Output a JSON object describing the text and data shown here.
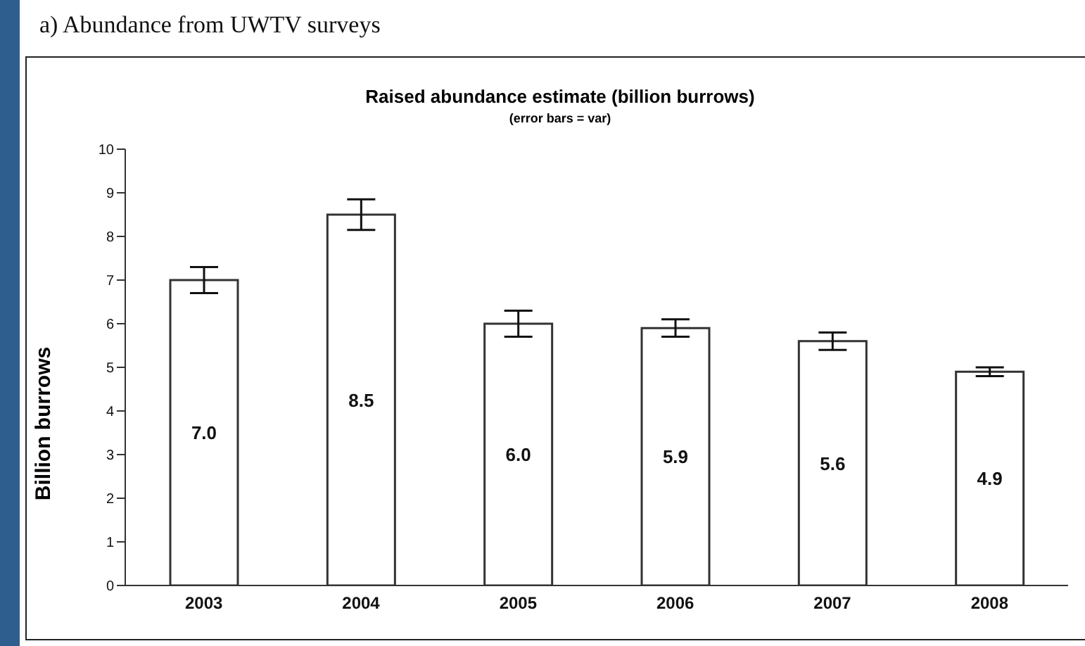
{
  "chart_data": {
    "type": "bar",
    "title": "Raised abundance estimate (billion burrows)",
    "subtitle": "(error bars = var)",
    "ylabel": "Billion burrows",
    "annotations": [
      "a) Abundance from UWTV surveys"
    ],
    "categories": [
      "2003",
      "2004",
      "2005",
      "2006",
      "2007",
      "2008"
    ],
    "values": [
      7.0,
      8.5,
      6.0,
      5.9,
      5.6,
      4.9
    ],
    "errors": [
      0.3,
      0.35,
      0.3,
      0.2,
      0.2,
      0.1
    ],
    "value_labels": [
      "7.0",
      "8.5",
      "6.0",
      "5.9",
      "5.6",
      "4.9"
    ],
    "color": "#ffffff",
    "ylim": [
      0,
      10
    ],
    "yticks": [
      0,
      1,
      2,
      3,
      4,
      5,
      6,
      7,
      8,
      9,
      10
    ],
    "grid": false
  }
}
